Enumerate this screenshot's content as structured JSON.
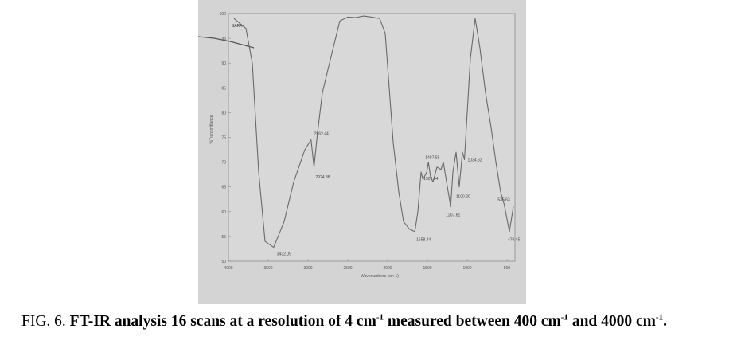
{
  "chart_data": {
    "type": "line",
    "title": "",
    "legend_label": "SARA",
    "xlabel": "Wavenumbers (cm-1)",
    "ylabel": "%Transmittance",
    "xlim": [
      4000,
      400
    ],
    "ylim": [
      50,
      100
    ],
    "x_ticks": [
      "4000",
      "3500",
      "3000",
      "2500",
      "2000",
      "1500",
      "1000",
      "500"
    ],
    "y_ticks": [
      "100",
      "95",
      "90",
      "85",
      "80",
      "75",
      "70",
      "65",
      "60",
      "55",
      "50"
    ],
    "grid": false,
    "series": [
      {
        "points": [
          [
            3930,
            99.0
          ],
          [
            3780,
            97.0
          ],
          [
            3700,
            90.0
          ],
          [
            3620,
            68.0
          ],
          [
            3540,
            54.0
          ],
          [
            3432.09,
            52.8
          ],
          [
            3300,
            58.0
          ],
          [
            3180,
            66.0
          ],
          [
            3040,
            72.5
          ],
          [
            2962.44,
            74.5
          ],
          [
            2924.88,
            69.0
          ],
          [
            2880,
            76.0
          ],
          [
            2820,
            84.0
          ],
          [
            2700,
            92.0
          ],
          [
            2600,
            98.5
          ],
          [
            2500,
            99.3
          ],
          [
            2400,
            99.2
          ],
          [
            2300,
            99.5
          ],
          [
            2200,
            99.3
          ],
          [
            2100,
            99.0
          ],
          [
            2030,
            96.0
          ],
          [
            1980,
            85.0
          ],
          [
            1930,
            74.0
          ],
          [
            1860,
            64.0
          ],
          [
            1800,
            58.0
          ],
          [
            1728,
            56.5
          ],
          [
            1658.44,
            56.0
          ],
          [
            1620,
            60.0
          ],
          [
            1580,
            68.0
          ],
          [
            1556,
            66.5
          ],
          [
            1507.94,
            68.0
          ],
          [
            1487.58,
            70.0
          ],
          [
            1460,
            67.0
          ],
          [
            1430,
            66.0
          ],
          [
            1380,
            69.0
          ],
          [
            1330,
            68.5
          ],
          [
            1300,
            70.0
          ],
          [
            1207.61,
            61.0
          ],
          [
            1180,
            68.0
          ],
          [
            1140,
            72.0
          ],
          [
            1100.2,
            65.0
          ],
          [
            1060,
            72.0
          ],
          [
            1034.62,
            70.5
          ],
          [
            1000,
            80.0
          ],
          [
            960,
            91.0
          ],
          [
            900,
            99.0
          ],
          [
            840,
            93.0
          ],
          [
            770,
            84.0
          ],
          [
            700,
            77.0
          ],
          [
            640,
            70.0
          ],
          [
            580,
            64.0
          ],
          [
            535.63,
            61.5
          ],
          [
            470.45,
            56.0
          ],
          [
            420,
            61.0
          ]
        ]
      }
    ],
    "annotations": [
      {
        "label": "3432.09",
        "x": 3432.09,
        "y": 52.8
      },
      {
        "label": "2962.44",
        "x": 2962.44,
        "y": 74.5
      },
      {
        "label": "2924.88",
        "x": 2924.88,
        "y": 69.0
      },
      {
        "label": "1658.44",
        "x": 1658.44,
        "y": 56.0
      },
      {
        "label": "1507.94",
        "x": 1507.94,
        "y": 68.0
      },
      {
        "label": "1487.58",
        "x": 1487.58,
        "y": 70.0
      },
      {
        "label": "1207.61",
        "x": 1207.61,
        "y": 61.0
      },
      {
        "label": "1100.20",
        "x": 1100.2,
        "y": 65.0
      },
      {
        "label": "1034.62",
        "x": 1034.62,
        "y": 70.5
      },
      {
        "label": "535.63",
        "x": 535.63,
        "y": 61.5
      },
      {
        "label": "470.45",
        "x": 470.45,
        "y": 56.0
      }
    ]
  },
  "caption": {
    "prefix": "FIG. 6. ",
    "bold_part1": "FT-IR analysis 16 scans at a resolution of 4 cm",
    "sup1": "-1",
    "bold_part2": " measured between 400 cm",
    "sup2": "-1",
    "bold_part3": " and 4000 cm",
    "sup3": "-1",
    "bold_part4": "."
  }
}
